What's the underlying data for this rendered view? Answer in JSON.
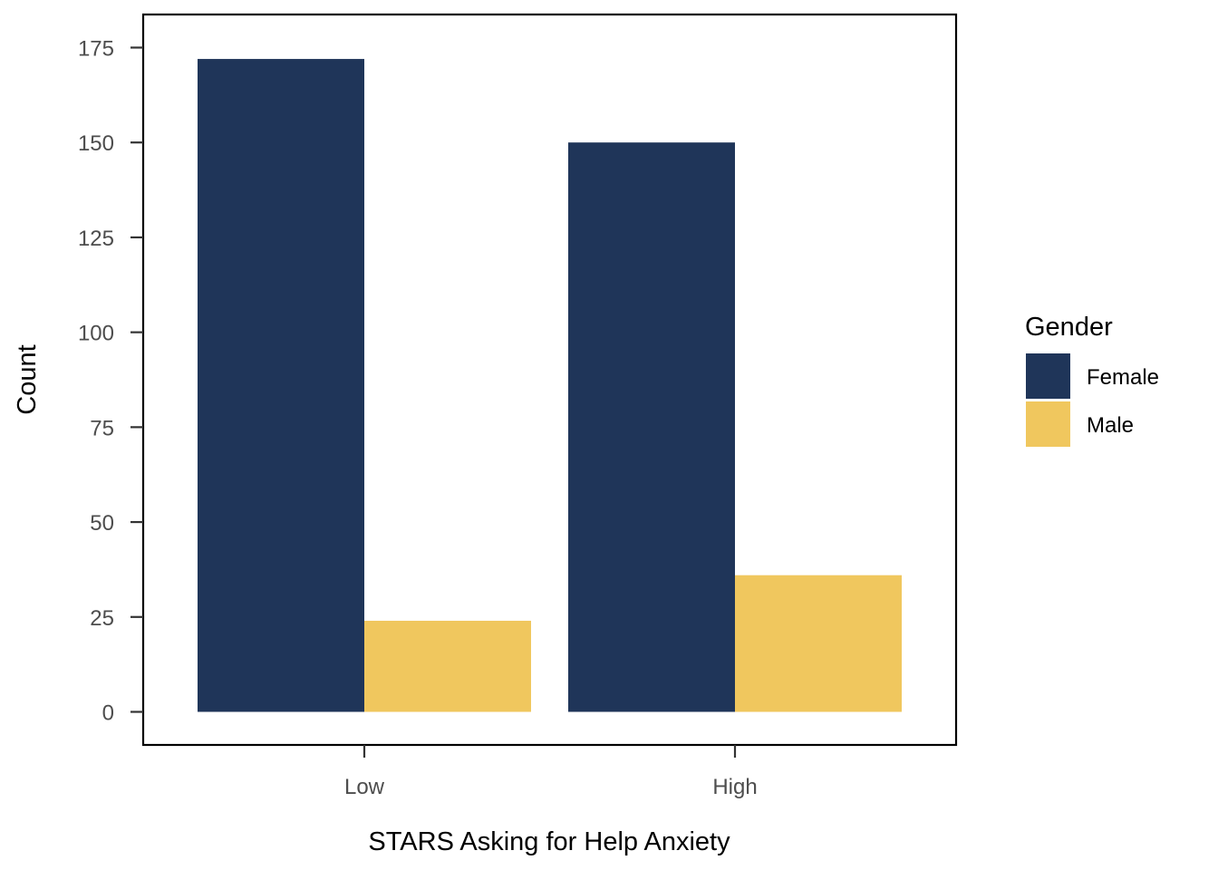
{
  "chart_data": {
    "type": "bar",
    "categories": [
      "Low",
      "High"
    ],
    "series": [
      {
        "name": "Female",
        "values": [
          172,
          150
        ],
        "color": "#1f3559"
      },
      {
        "name": "Male",
        "values": [
          24,
          36
        ],
        "color": "#f0c75e"
      }
    ],
    "xlabel": "STARS Asking for Help Anxiety",
    "ylabel": "Count",
    "ylim": [
      0,
      175
    ],
    "yticks": [
      0,
      25,
      50,
      75,
      100,
      125,
      150,
      175
    ],
    "legend": {
      "title": "Gender",
      "position": "right"
    },
    "grid": false
  }
}
